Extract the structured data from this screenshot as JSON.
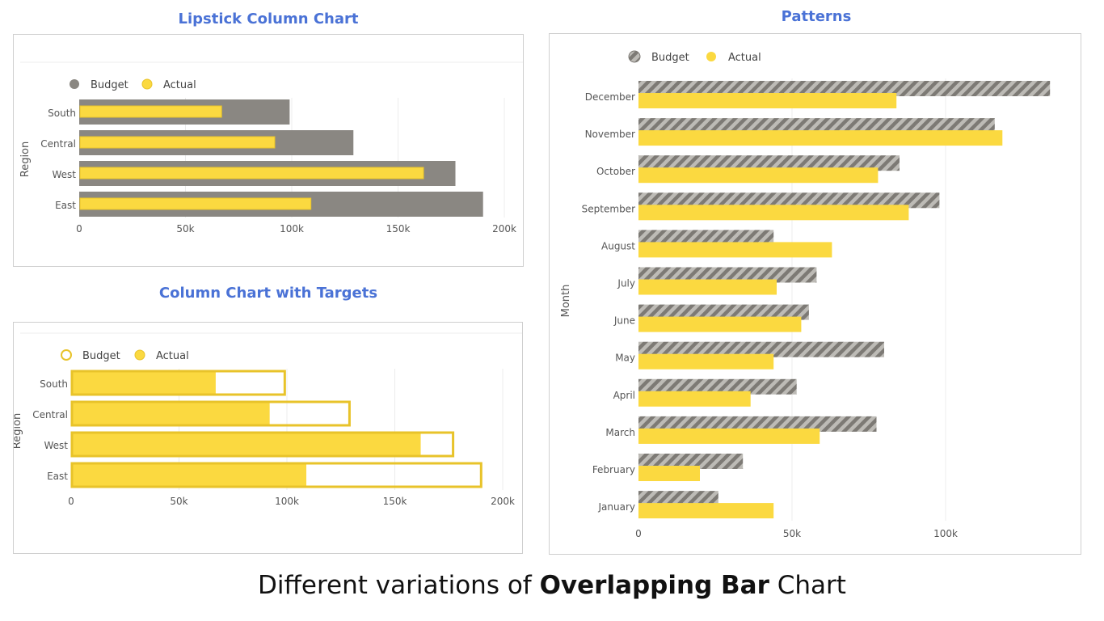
{
  "colors": {
    "budget_gray": "#8a8782",
    "actual_yellow": "#fbd940",
    "outline_yellow": "#e8c32a",
    "title_blue": "#4a72d6"
  },
  "footer": {
    "prefix": "Different variations of ",
    "emphasis": "Overlapping  Bar",
    "suffix": " Chart"
  },
  "chart_data": [
    {
      "id": "lipstick",
      "type": "bar",
      "orientation": "horizontal",
      "title": "Lipstick Column Chart",
      "ylabel": "Region",
      "xlabel": "",
      "categories": [
        "South",
        "Central",
        "West",
        "East"
      ],
      "series": [
        {
          "name": "Budget",
          "values": [
            99000,
            129000,
            177000,
            190000
          ]
        },
        {
          "name": "Actual",
          "values": [
            67000,
            92000,
            162000,
            109000
          ]
        }
      ],
      "xlim": [
        0,
        200000
      ],
      "xticks": [
        0,
        50000,
        100000,
        150000,
        200000
      ],
      "xtick_labels": [
        "0",
        "50k",
        "100k",
        "150k",
        "200k"
      ],
      "legend": "top-left"
    },
    {
      "id": "targets",
      "type": "bar",
      "orientation": "horizontal",
      "title": "Column Chart with Targets",
      "ylabel": "Region",
      "xlabel": "",
      "categories": [
        "South",
        "Central",
        "West",
        "East"
      ],
      "series": [
        {
          "name": "Budget",
          "values": [
            99000,
            129000,
            177000,
            190000
          ]
        },
        {
          "name": "Actual",
          "values": [
            67000,
            92000,
            162000,
            109000
          ]
        }
      ],
      "xlim": [
        0,
        200000
      ],
      "xticks": [
        0,
        50000,
        100000,
        150000,
        200000
      ],
      "xtick_labels": [
        "0",
        "50k",
        "100k",
        "150k",
        "200k"
      ],
      "legend": "top-left"
    },
    {
      "id": "patterns",
      "type": "bar",
      "orientation": "horizontal",
      "title": "Patterns",
      "ylabel": "Month",
      "xlabel": "",
      "categories": [
        "December",
        "November",
        "October",
        "September",
        "August",
        "July",
        "June",
        "May",
        "April",
        "March",
        "February",
        "January"
      ],
      "series": [
        {
          "name": "Budget",
          "values": [
            134000,
            116000,
            85000,
            98000,
            44000,
            58000,
            55500,
            80000,
            51500,
            77500,
            34000,
            26000
          ]
        },
        {
          "name": "Actual",
          "values": [
            84000,
            118500,
            78000,
            88000,
            63000,
            45000,
            53000,
            44000,
            36500,
            59000,
            20000,
            44000
          ]
        }
      ],
      "xlim": [
        0,
        140000
      ],
      "xticks": [
        0,
        50000,
        100000
      ],
      "xtick_labels": [
        "0",
        "50k",
        "100k"
      ],
      "legend": "top-left"
    }
  ]
}
